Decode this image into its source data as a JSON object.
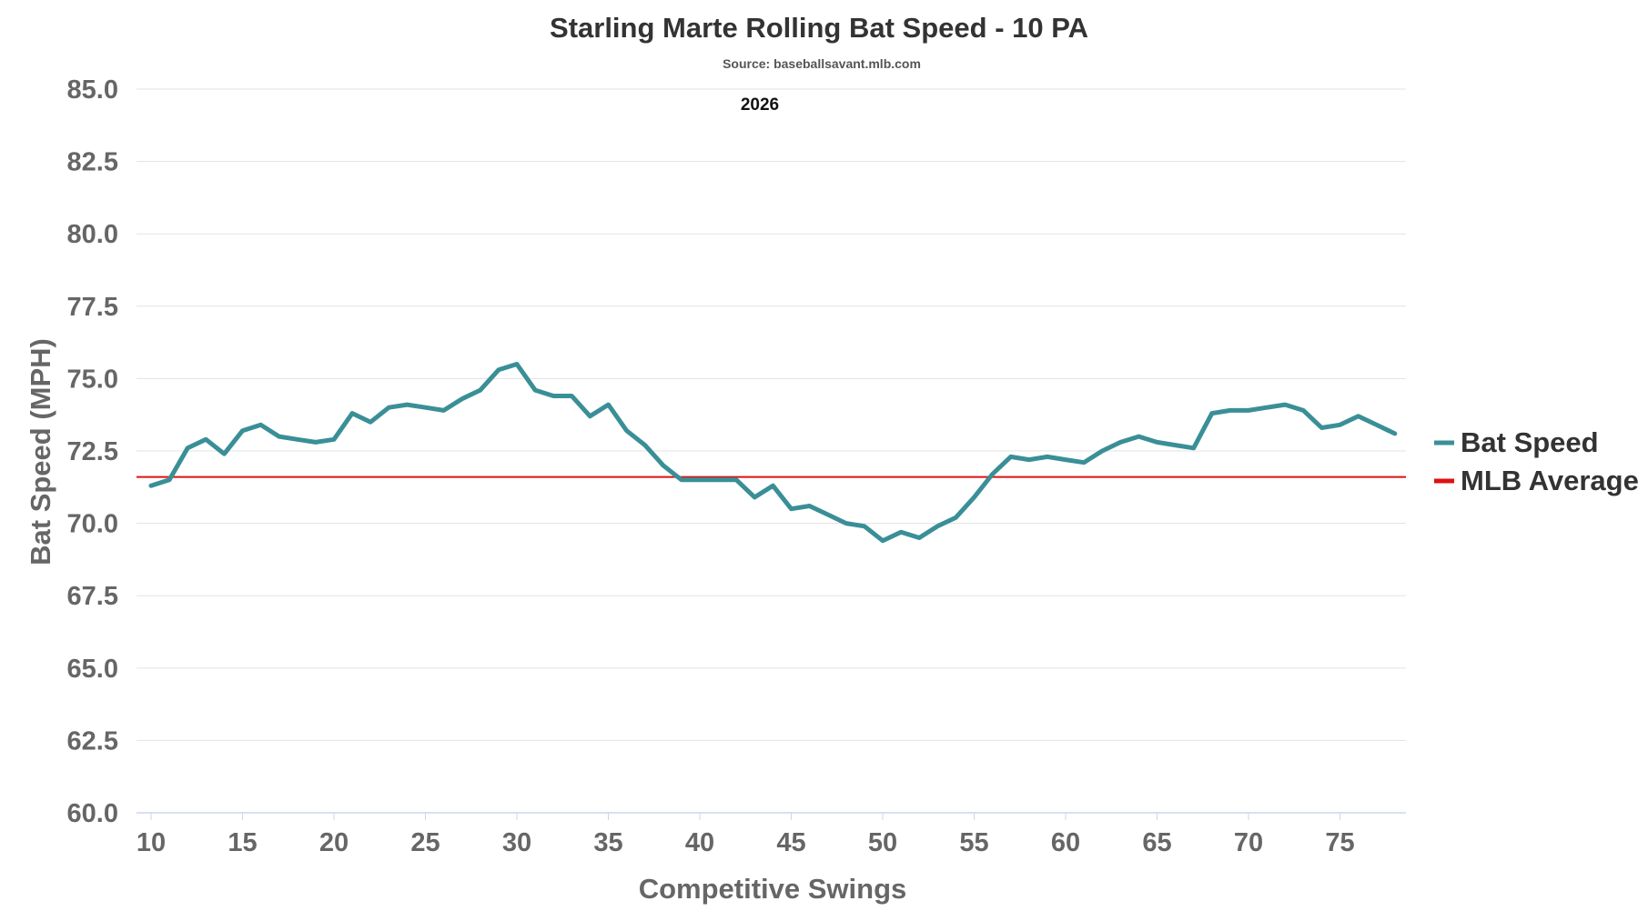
{
  "chart_data": {
    "type": "line",
    "title": "Starling Marte Rolling Bat Speed - 10 PA",
    "subtitle": "Source: baseballsavant.mlb.com",
    "annotation": "2026",
    "xlabel": "Competitive Swings",
    "ylabel": "Bat Speed (MPH)",
    "xlim": [
      10,
      78
    ],
    "ylim": [
      60,
      85
    ],
    "xticks": [
      10,
      15,
      20,
      25,
      30,
      35,
      40,
      45,
      50,
      55,
      60,
      65,
      70,
      75
    ],
    "xtick_labels": [
      "10",
      "15",
      "20",
      "25",
      "30",
      "35",
      "40",
      "45",
      "50",
      "55",
      "60",
      "65",
      "70",
      "75"
    ],
    "yticks": [
      60,
      62.5,
      65,
      67.5,
      70,
      72.5,
      75,
      77.5,
      80,
      82.5,
      85
    ],
    "ytick_labels": [
      "60.0",
      "62.5",
      "65.0",
      "67.5",
      "70.0",
      "72.5",
      "75.0",
      "77.5",
      "80.0",
      "82.5",
      "85.0"
    ],
    "grid": true,
    "legend_position": "right",
    "series": [
      {
        "name": "Bat Speed",
        "color": "#3a8f97",
        "x": [
          10,
          11,
          12,
          13,
          14,
          15,
          16,
          17,
          18,
          19,
          20,
          21,
          22,
          23,
          24,
          25,
          26,
          27,
          28,
          29,
          30,
          31,
          32,
          33,
          34,
          35,
          36,
          37,
          38,
          39,
          40,
          41,
          42,
          43,
          44,
          45,
          46,
          47,
          48,
          49,
          50,
          51,
          52,
          53,
          54,
          55,
          56,
          57,
          58,
          59,
          60,
          61,
          62,
          63,
          64,
          65,
          66,
          67,
          68,
          69,
          70,
          71,
          72,
          73,
          74,
          75,
          76,
          77,
          78
        ],
        "values": [
          71.3,
          71.5,
          72.6,
          72.9,
          72.4,
          73.2,
          73.4,
          73.0,
          72.9,
          72.8,
          72.9,
          73.8,
          73.5,
          74.0,
          74.1,
          74.0,
          73.9,
          74.3,
          74.6,
          75.3,
          75.5,
          74.6,
          74.4,
          74.4,
          73.7,
          74.1,
          73.2,
          72.7,
          72.0,
          71.5,
          71.5,
          71.5,
          71.5,
          70.9,
          71.3,
          70.5,
          70.6,
          70.3,
          70.0,
          69.9,
          69.4,
          69.7,
          69.5,
          69.9,
          70.2,
          70.9,
          71.7,
          72.3,
          72.2,
          72.3,
          72.2,
          72.1,
          72.5,
          72.8,
          73.0,
          72.8,
          72.7,
          72.6,
          73.8,
          73.9,
          73.9,
          74.0,
          74.1,
          73.9,
          73.3,
          73.4,
          73.7,
          73.4,
          73.1
        ]
      },
      {
        "name": "MLB Average",
        "color": "#dd1111",
        "values": [
          71.6
        ]
      }
    ]
  }
}
